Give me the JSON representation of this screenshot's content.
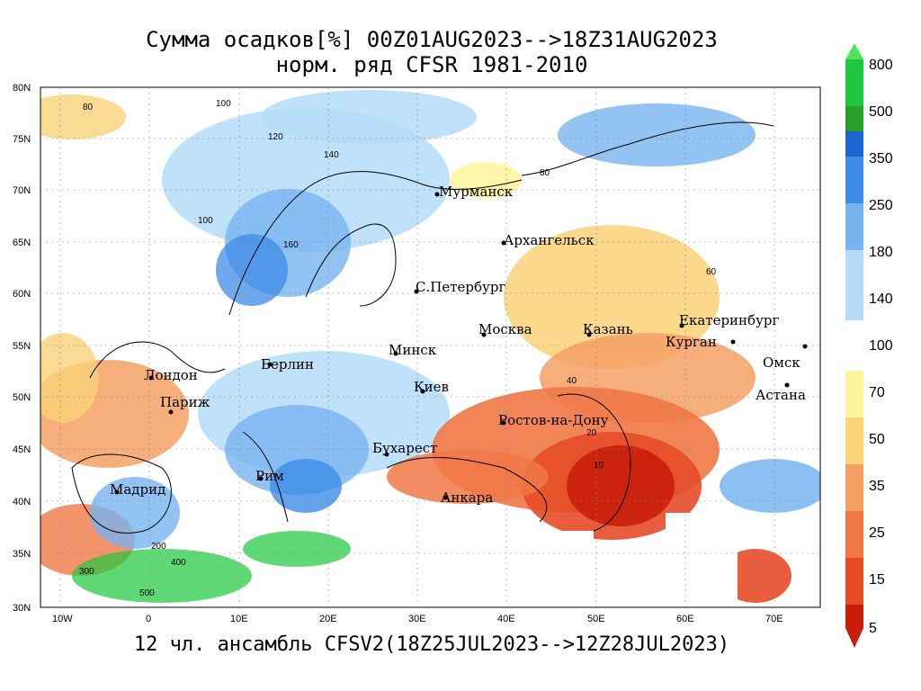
{
  "title": {
    "line1": "Сумма осадков[%] 00Z01AUG2023-->18Z31AUG2023",
    "line2": "норм. ряд CFSR 1981-2010"
  },
  "footer": "12 чл. ансамбль CFSV2(18Z25JUL2023-->12Z28JUL2023)",
  "axes": {
    "lat_labels": [
      "80N",
      "75N",
      "70N",
      "65N",
      "60N",
      "55N",
      "50N",
      "45N",
      "40N",
      "35N",
      "30N"
    ],
    "lon_labels": [
      "10W",
      "0",
      "10E",
      "20E",
      "30E",
      "40E",
      "50E",
      "60E",
      "70E"
    ]
  },
  "cities": [
    {
      "name": "Мурманск"
    },
    {
      "name": "Архангельск"
    },
    {
      "name": "С.Петербург"
    },
    {
      "name": "Москва"
    },
    {
      "name": "Казань"
    },
    {
      "name": "Екатеринбург"
    },
    {
      "name": "Курган"
    },
    {
      "name": "Омск"
    },
    {
      "name": "Астана"
    },
    {
      "name": "Минск"
    },
    {
      "name": "Берлин"
    },
    {
      "name": "Лондон"
    },
    {
      "name": "Париж"
    },
    {
      "name": "Киев"
    },
    {
      "name": "Ростов-на-Дону"
    },
    {
      "name": "Бухарест"
    },
    {
      "name": "Рим"
    },
    {
      "name": "Мадрид"
    },
    {
      "name": "Анкара"
    }
  ],
  "contour_labels": [
    "80",
    "100",
    "120",
    "140",
    "160",
    "100",
    "60",
    "80",
    "40",
    "20",
    "10",
    "300",
    "400",
    "500",
    "200"
  ],
  "colorbar": {
    "upper": {
      "labels": [
        "800",
        "500",
        "350",
        "250",
        "180",
        "140"
      ],
      "colors": [
        "#1ec83c",
        "#28a028",
        "#1e64d2",
        "#3c8ce6",
        "#78b4f0",
        "#b4dcf8"
      ],
      "arrow_color": "#50e65a"
    },
    "mid_label": "100",
    "lower": {
      "labels": [
        "70",
        "50",
        "35",
        "25",
        "15",
        "5"
      ],
      "colors": [
        "#fff5a0",
        "#fad278",
        "#f5a064",
        "#f07846",
        "#e64b28",
        "#c81e0a"
      ],
      "arrow_color": "#c81e0a"
    }
  }
}
